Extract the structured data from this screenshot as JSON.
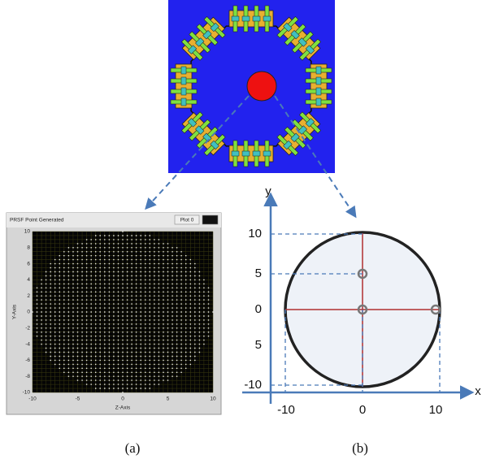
{
  "panel_a": {
    "title": "PRSF Point Generated",
    "plot_label": "Plot 0",
    "y_axis_label": "Y-Axis",
    "x_axis_label": "Z-Axis",
    "yticks": [
      "10",
      "8",
      "6",
      "4",
      "2",
      "0",
      "-2",
      "-4",
      "-6",
      "-8",
      "-10"
    ],
    "xticks": [
      "-10",
      "-5",
      "0",
      "5",
      "10"
    ]
  },
  "panel_b": {
    "y_label": "y",
    "x_label": "x",
    "yticks": [
      "10",
      "5",
      "0",
      "5",
      "-10"
    ],
    "xticks": [
      "-10",
      "0",
      "10"
    ]
  },
  "captions": [
    "(a)",
    "(b)"
  ]
}
